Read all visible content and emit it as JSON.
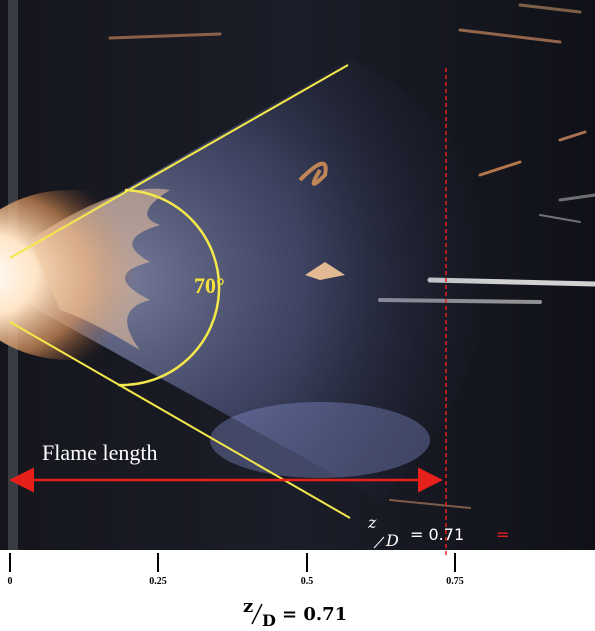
{
  "photo": {
    "angle_label": "70°",
    "flame_length_label": "Flame length",
    "inset_ratio": {
      "numerator": "z",
      "denominator": "D",
      "value": "= 0.71",
      "trailing": "="
    }
  },
  "axis": {
    "ticks": [
      "0",
      "0.25",
      "0.5",
      "0.75"
    ]
  },
  "caption": {
    "numerator": "z",
    "denominator": "D",
    "value": "= 0.71"
  },
  "colors": {
    "cone_lines": "#f4e84a",
    "angle_label": "#f4e23a",
    "arrow": "#e8201a",
    "dashed_line": "#e8201a",
    "photo_background": "#0e1018"
  }
}
